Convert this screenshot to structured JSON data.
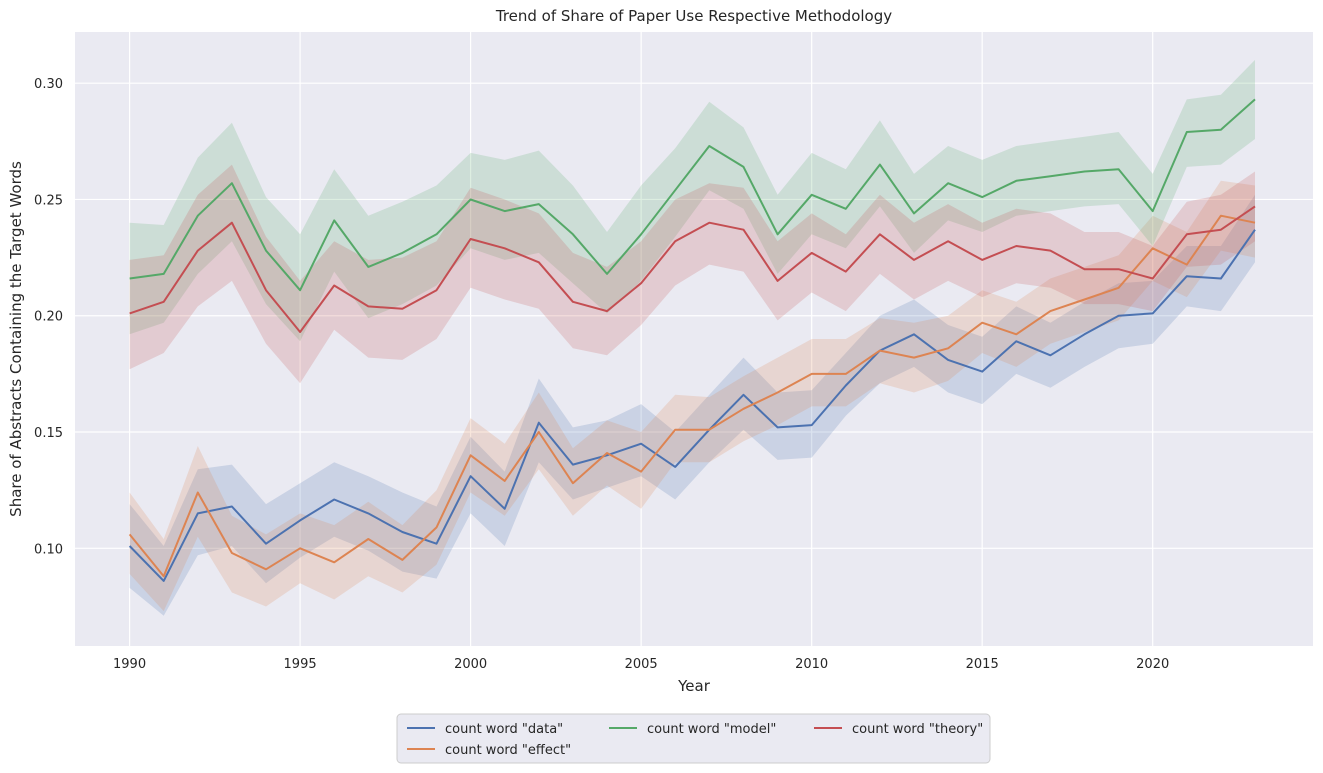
{
  "chart_data": {
    "type": "line",
    "title": "Trend of Share of Paper Use Respective Methodology",
    "xlabel": "Year",
    "ylabel": "Share of Abstracts Containing the Target Words",
    "xlim": [
      1988.4,
      2024.7
    ],
    "ylim": [
      0.058,
      0.322
    ],
    "x_ticks": [
      1990,
      1995,
      2000,
      2005,
      2010,
      2015,
      2020
    ],
    "y_ticks": [
      0.1,
      0.15,
      0.2,
      0.25,
      0.3
    ],
    "y_tick_labels": [
      "0.10",
      "0.15",
      "0.20",
      "0.25",
      "0.30"
    ],
    "grid": true,
    "legend_position": "bottom-center",
    "x": [
      1990,
      1991,
      1992,
      1993,
      1994,
      1995,
      1996,
      1997,
      1998,
      1999,
      2000,
      2001,
      2002,
      2003,
      2004,
      2005,
      2006,
      2007,
      2008,
      2009,
      2010,
      2011,
      2012,
      2013,
      2014,
      2015,
      2016,
      2017,
      2018,
      2019,
      2020,
      2021,
      2022,
      2023
    ],
    "series": [
      {
        "name": "count word \"data\"",
        "color": "#4c72b0",
        "values": [
          0.101,
          0.086,
          0.115,
          0.118,
          0.102,
          0.112,
          0.121,
          0.115,
          0.107,
          0.102,
          0.131,
          0.117,
          0.154,
          0.136,
          0.14,
          0.145,
          0.135,
          0.151,
          0.166,
          0.152,
          0.153,
          0.17,
          0.185,
          0.192,
          0.181,
          0.176,
          0.189,
          0.183,
          0.192,
          0.2,
          0.201,
          0.217,
          0.216,
          0.237
        ],
        "lower": [
          0.083,
          0.071,
          0.097,
          0.101,
          0.085,
          0.096,
          0.105,
          0.099,
          0.09,
          0.087,
          0.115,
          0.101,
          0.137,
          0.121,
          0.126,
          0.131,
          0.121,
          0.137,
          0.151,
          0.138,
          0.139,
          0.157,
          0.171,
          0.178,
          0.167,
          0.162,
          0.175,
          0.169,
          0.178,
          0.186,
          0.188,
          0.204,
          0.202,
          0.223
        ],
        "upper": [
          0.119,
          0.101,
          0.134,
          0.136,
          0.119,
          0.128,
          0.137,
          0.131,
          0.124,
          0.118,
          0.148,
          0.133,
          0.173,
          0.152,
          0.155,
          0.162,
          0.15,
          0.166,
          0.182,
          0.167,
          0.168,
          0.184,
          0.2,
          0.207,
          0.196,
          0.191,
          0.204,
          0.197,
          0.206,
          0.214,
          0.215,
          0.23,
          0.23,
          0.252
        ]
      },
      {
        "name": "count word \"effect\"",
        "color": "#dd8452",
        "values": [
          0.106,
          0.088,
          0.124,
          0.098,
          0.091,
          0.1,
          0.094,
          0.104,
          0.095,
          0.109,
          0.14,
          0.129,
          0.15,
          0.128,
          0.141,
          0.133,
          0.151,
          0.151,
          0.16,
          0.167,
          0.175,
          0.175,
          0.185,
          0.182,
          0.186,
          0.197,
          0.192,
          0.202,
          0.207,
          0.212,
          0.229,
          0.222,
          0.243,
          0.24
        ],
        "lower": [
          0.089,
          0.073,
          0.105,
          0.081,
          0.075,
          0.085,
          0.078,
          0.088,
          0.081,
          0.093,
          0.124,
          0.114,
          0.134,
          0.114,
          0.127,
          0.117,
          0.137,
          0.137,
          0.146,
          0.153,
          0.161,
          0.161,
          0.171,
          0.167,
          0.172,
          0.184,
          0.178,
          0.188,
          0.193,
          0.198,
          0.215,
          0.208,
          0.228,
          0.225
        ],
        "upper": [
          0.124,
          0.104,
          0.144,
          0.114,
          0.106,
          0.115,
          0.11,
          0.12,
          0.11,
          0.125,
          0.156,
          0.145,
          0.167,
          0.143,
          0.155,
          0.15,
          0.166,
          0.165,
          0.174,
          0.182,
          0.19,
          0.19,
          0.199,
          0.197,
          0.2,
          0.211,
          0.206,
          0.216,
          0.221,
          0.226,
          0.243,
          0.236,
          0.258,
          0.256
        ]
      },
      {
        "name": "count word \"model\"",
        "color": "#55a868",
        "values": [
          0.216,
          0.218,
          0.243,
          0.257,
          0.228,
          0.211,
          0.241,
          0.221,
          0.227,
          0.235,
          0.25,
          0.245,
          0.248,
          0.235,
          0.218,
          0.235,
          0.254,
          0.273,
          0.264,
          0.235,
          0.252,
          0.246,
          0.265,
          0.244,
          0.257,
          0.251,
          0.258,
          0.26,
          0.262,
          0.263,
          0.245,
          0.279,
          0.28,
          0.293
        ],
        "lower": [
          0.192,
          0.197,
          0.218,
          0.232,
          0.205,
          0.189,
          0.219,
          0.199,
          0.205,
          0.213,
          0.229,
          0.224,
          0.227,
          0.214,
          0.201,
          0.215,
          0.234,
          0.254,
          0.246,
          0.218,
          0.235,
          0.229,
          0.247,
          0.227,
          0.241,
          0.236,
          0.243,
          0.245,
          0.247,
          0.248,
          0.23,
          0.264,
          0.265,
          0.276
        ],
        "upper": [
          0.24,
          0.239,
          0.268,
          0.283,
          0.251,
          0.235,
          0.263,
          0.243,
          0.249,
          0.256,
          0.27,
          0.267,
          0.271,
          0.256,
          0.236,
          0.256,
          0.272,
          0.292,
          0.281,
          0.252,
          0.27,
          0.263,
          0.284,
          0.261,
          0.273,
          0.267,
          0.273,
          0.275,
          0.277,
          0.279,
          0.261,
          0.293,
          0.295,
          0.31
        ]
      },
      {
        "name": "count word \"theory\"",
        "color": "#c44e52",
        "values": [
          0.201,
          0.206,
          0.228,
          0.24,
          0.211,
          0.193,
          0.213,
          0.204,
          0.203,
          0.211,
          0.233,
          0.229,
          0.223,
          0.206,
          0.202,
          0.214,
          0.232,
          0.24,
          0.237,
          0.215,
          0.227,
          0.219,
          0.235,
          0.224,
          0.232,
          0.224,
          0.23,
          0.228,
          0.22,
          0.22,
          0.216,
          0.235,
          0.237,
          0.247
        ],
        "lower": [
          0.177,
          0.184,
          0.204,
          0.215,
          0.188,
          0.171,
          0.194,
          0.182,
          0.181,
          0.19,
          0.212,
          0.207,
          0.203,
          0.186,
          0.183,
          0.196,
          0.213,
          0.222,
          0.219,
          0.198,
          0.21,
          0.202,
          0.218,
          0.207,
          0.215,
          0.208,
          0.214,
          0.212,
          0.205,
          0.205,
          0.202,
          0.221,
          0.222,
          0.232
        ],
        "upper": [
          0.224,
          0.226,
          0.252,
          0.265,
          0.234,
          0.215,
          0.232,
          0.224,
          0.225,
          0.232,
          0.255,
          0.25,
          0.244,
          0.227,
          0.221,
          0.232,
          0.25,
          0.257,
          0.255,
          0.232,
          0.244,
          0.235,
          0.252,
          0.24,
          0.248,
          0.24,
          0.246,
          0.244,
          0.236,
          0.236,
          0.23,
          0.249,
          0.252,
          0.262
        ]
      }
    ]
  }
}
